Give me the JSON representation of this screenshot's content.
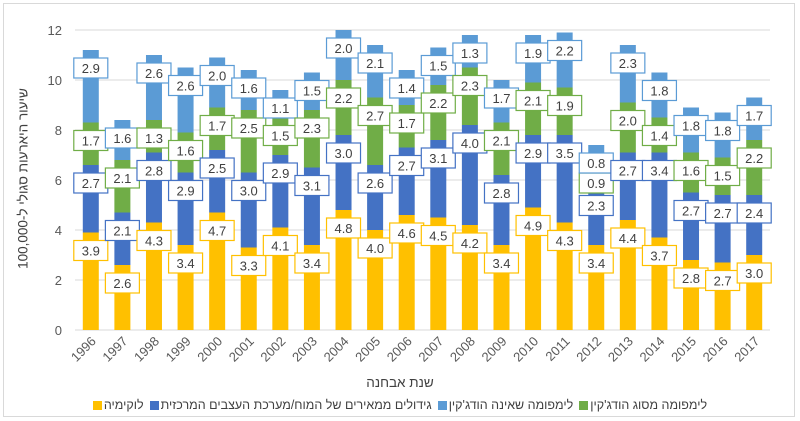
{
  "chart_data": {
    "type": "bar",
    "stacked": true,
    "xlabel": "שנת אבחנה",
    "ylabel": "שיעור היארעות סגולי ל-100,000",
    "ylim": [
      0,
      12
    ],
    "yticks": [
      0,
      2,
      4,
      6,
      8,
      10,
      12
    ],
    "grid": true,
    "legend_position": "bottom",
    "categories": [
      "1996",
      "1997",
      "1998",
      "1999",
      "2000",
      "2001",
      "2002",
      "2003",
      "2004",
      "2005",
      "2006",
      "2007",
      "2008",
      "2009",
      "2010",
      "2011",
      "2012",
      "2013",
      "2014",
      "2015",
      "2016",
      "2017"
    ],
    "series": [
      {
        "name": "לוקימיה",
        "color": "#FFC000",
        "values": [
          3.9,
          2.6,
          4.3,
          3.4,
          4.7,
          3.3,
          4.1,
          3.4,
          4.8,
          4.0,
          4.6,
          4.5,
          4.2,
          3.4,
          4.9,
          4.3,
          3.4,
          4.4,
          3.7,
          2.8,
          2.7,
          3.0
        ]
      },
      {
        "name": "גידולים ממאירים של המוח/מערכת העצבים המרכזית",
        "color": "#4472C4",
        "values": [
          2.7,
          2.1,
          2.8,
          2.9,
          2.5,
          3.0,
          2.9,
          3.1,
          3.0,
          2.6,
          2.7,
          3.1,
          4.0,
          2.8,
          2.9,
          3.5,
          2.3,
          2.7,
          3.4,
          2.7,
          2.7,
          2.4
        ]
      },
      {
        "name": "לימפומה מסוג הודג'קין",
        "color": "#70AD47",
        "values": [
          1.7,
          2.1,
          1.3,
          1.6,
          1.7,
          2.5,
          1.5,
          2.3,
          2.2,
          2.7,
          1.7,
          2.2,
          2.3,
          2.1,
          2.1,
          1.9,
          0.9,
          2.0,
          1.4,
          1.6,
          1.5,
          2.2
        ]
      },
      {
        "name": "לימפומה שאינה הודג'קין",
        "color": "#5B9BD5",
        "values": [
          2.9,
          1.6,
          2.6,
          2.6,
          2.0,
          1.6,
          1.1,
          1.5,
          2.0,
          2.1,
          1.4,
          1.5,
          1.3,
          1.7,
          1.9,
          2.2,
          0.8,
          2.3,
          1.8,
          1.8,
          1.8,
          1.7
        ]
      }
    ],
    "legend_order": [
      2,
      3,
      1,
      0
    ]
  }
}
